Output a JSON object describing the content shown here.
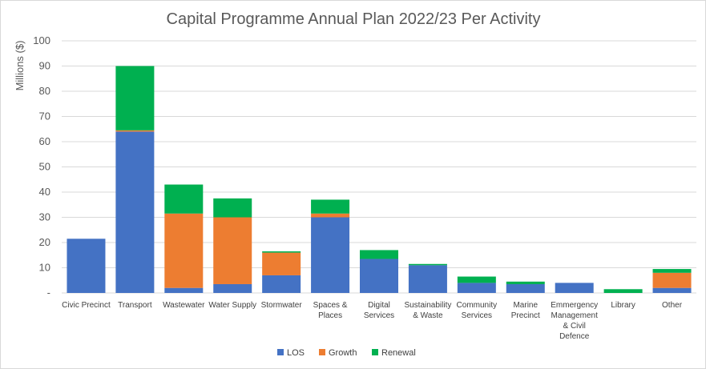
{
  "chart_data": {
    "type": "bar",
    "stacked": true,
    "title": "Capital Programme Annual Plan 2022/23 Per Activity",
    "xlabel": "",
    "ylabel": "Millions ($)",
    "ylim": [
      0,
      100
    ],
    "yticks": [
      "-",
      "10",
      "20",
      "30",
      "40",
      "50",
      "60",
      "70",
      "80",
      "90",
      "100"
    ],
    "grid": true,
    "legend_position": "bottom",
    "categories": [
      "Civic Precinct",
      "Transport",
      "Wastewater",
      "Water Supply",
      "Stormwater",
      "Spaces & Places",
      "Digital Services",
      "Sustainability & Waste",
      "Community Services",
      "Marine Precinct",
      "Emmergency Management & Civil Defence",
      "Library",
      "Other"
    ],
    "category_lines": [
      [
        "Civic Precinct"
      ],
      [
        "Transport"
      ],
      [
        "Wastewater"
      ],
      [
        "Water Supply"
      ],
      [
        "Stormwater"
      ],
      [
        "Spaces &",
        "Places"
      ],
      [
        "Digital",
        "Services"
      ],
      [
        "Sustainability",
        "& Waste"
      ],
      [
        "Community",
        "Services"
      ],
      [
        "Marine",
        "Precinct"
      ],
      [
        "Emmergency",
        "Management",
        "& Civil",
        "Defence"
      ],
      [
        "Library"
      ],
      [
        "Other"
      ]
    ],
    "series": [
      {
        "name": "LOS",
        "color": "#4472c4",
        "values": [
          21.5,
          64,
          2,
          3.5,
          7,
          30,
          13.5,
          11,
          4,
          3.5,
          4,
          0,
          2
        ]
      },
      {
        "name": "Growth",
        "color": "#ed7d31",
        "values": [
          0,
          0.5,
          29.5,
          26.5,
          9,
          1.5,
          0,
          0,
          0,
          0,
          0,
          0,
          6
        ]
      },
      {
        "name": "Renewal",
        "color": "#00b050",
        "values": [
          0,
          25.5,
          11.5,
          7.5,
          0.5,
          5.5,
          3.5,
          0.5,
          2.5,
          1,
          0,
          1.5,
          1.5
        ]
      }
    ]
  }
}
